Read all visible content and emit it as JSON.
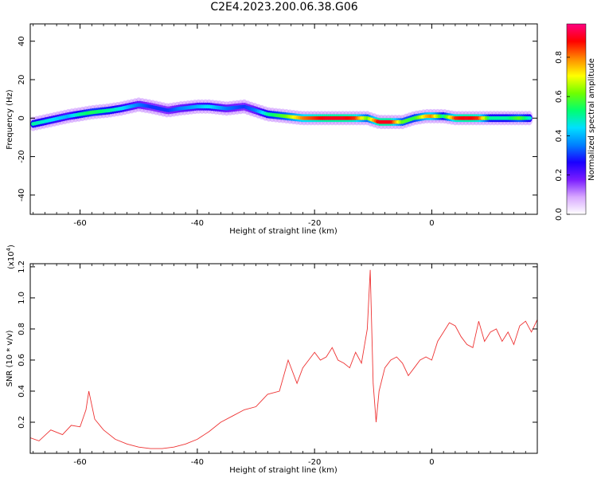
{
  "title": "C2E4.2023.200.06.38.G06",
  "chart_data": [
    {
      "type": "heatmap",
      "xlabel": "Height of straight line (km)",
      "ylabel": "Frequency (Hz)",
      "xlim": [
        -68.5,
        18
      ],
      "ylim": [
        -50,
        49
      ],
      "x_ticks": [
        "-60",
        "-40",
        "-20",
        "0"
      ],
      "x_tick_values": [
        -60,
        -40,
        -20,
        0
      ],
      "y_ticks": [
        "40",
        "20",
        "0",
        "-20",
        "-40"
      ],
      "y_tick_values": [
        40,
        20,
        0,
        -20,
        -40
      ],
      "colorbar": {
        "label": "Normalized spectral amplitude",
        "range": [
          0,
          0.97
        ],
        "ticks": [
          "0.0",
          "0.2",
          "0.4",
          "0.6",
          "0.8"
        ],
        "tick_values": [
          0,
          0.2,
          0.4,
          0.6,
          0.8
        ],
        "colors": [
          "#ffffff",
          "#d8a8ff",
          "#7a1cff",
          "#1a00ff",
          "#0080ff",
          "#00e0ff",
          "#00ff70",
          "#70ff00",
          "#ffff00",
          "#ff8800",
          "#ff0000",
          "#ff0080"
        ]
      },
      "ridge": {
        "x": [
          -68,
          -65,
          -62,
          -60,
          -58,
          -55,
          -53,
          -50,
          -48,
          -45,
          -43,
          -40,
          -38,
          -35,
          -32,
          -30,
          -28,
          -25,
          -22,
          -20,
          -18,
          -15,
          -13,
          -11,
          -9,
          -7,
          -5,
          -3,
          -1,
          0,
          2,
          4,
          6,
          8,
          10,
          13,
          15,
          17
        ],
        "frequency": [
          -3,
          -1,
          1,
          2,
          3,
          4,
          5,
          7,
          6,
          4,
          5,
          6,
          6,
          5,
          6,
          4,
          2,
          1,
          0,
          0,
          0,
          0,
          0,
          0,
          -2,
          -2,
          -2,
          0,
          1,
          1,
          1,
          0,
          0,
          0,
          0,
          0,
          0,
          0
        ],
        "amplitude": [
          0.5,
          0.45,
          0.4,
          0.5,
          0.55,
          0.5,
          0.45,
          0.35,
          0.3,
          0.3,
          0.35,
          0.4,
          0.45,
          0.35,
          0.3,
          0.35,
          0.5,
          0.6,
          0.8,
          0.85,
          0.9,
          0.9,
          0.85,
          0.6,
          0.9,
          0.9,
          0.6,
          0.55,
          0.75,
          0.8,
          0.5,
          0.85,
          0.9,
          0.85,
          0.5,
          0.5,
          0.6,
          0.45
        ]
      }
    },
    {
      "type": "line",
      "xlabel": "Height of straight line (km)",
      "ylabel": "SNR (10 * v/v)",
      "y_multiplier": "(x10",
      "y_multiplier_exp": "4",
      "y_multiplier_close": ")",
      "xlim": [
        -68.5,
        18
      ],
      "ylim": [
        0,
        1.22
      ],
      "x_ticks": [
        "-60",
        "-40",
        "-20",
        "0"
      ],
      "x_tick_values": [
        -60,
        -40,
        -20,
        0
      ],
      "y_ticks": [
        "0.2",
        "0.4",
        "0.6",
        "0.8",
        "1.0",
        "1.2"
      ],
      "y_tick_values": [
        0.2,
        0.4,
        0.6,
        0.8,
        1.0,
        1.2
      ],
      "color": "#ee3333",
      "series": [
        {
          "x": [
            -68.5,
            -67,
            -65,
            -63,
            -61.5,
            -60,
            -59,
            -58.5,
            -57.5,
            -56,
            -54,
            -52,
            -50,
            -48,
            -46,
            -44,
            -42,
            -40,
            -38,
            -36,
            -34,
            -32,
            -30,
            -28,
            -26,
            -24.5,
            -23,
            -22,
            -21,
            -20,
            -19,
            -18,
            -17,
            -16,
            -15,
            -14,
            -13,
            -12,
            -11,
            -10.5,
            -10,
            -9.5,
            -9,
            -8,
            -7,
            -6,
            -5,
            -4,
            -3,
            -2,
            -1,
            0,
            1,
            2,
            3,
            4,
            5,
            6,
            7,
            8,
            9,
            10,
            11,
            12,
            13,
            14,
            15,
            16,
            17,
            18
          ],
          "y": [
            0.1,
            0.08,
            0.15,
            0.12,
            0.18,
            0.17,
            0.28,
            0.4,
            0.22,
            0.15,
            0.09,
            0.06,
            0.04,
            0.03,
            0.03,
            0.04,
            0.06,
            0.09,
            0.14,
            0.2,
            0.24,
            0.28,
            0.3,
            0.38,
            0.4,
            0.6,
            0.45,
            0.55,
            0.6,
            0.65,
            0.6,
            0.62,
            0.68,
            0.6,
            0.58,
            0.55,
            0.65,
            0.58,
            0.8,
            1.18,
            0.45,
            0.2,
            0.4,
            0.55,
            0.6,
            0.62,
            0.58,
            0.5,
            0.55,
            0.6,
            0.62,
            0.6,
            0.72,
            0.78,
            0.84,
            0.82,
            0.75,
            0.7,
            0.68,
            0.85,
            0.72,
            0.78,
            0.8,
            0.72,
            0.78,
            0.7,
            0.82,
            0.85,
            0.78,
            0.86
          ]
        }
      ]
    }
  ]
}
